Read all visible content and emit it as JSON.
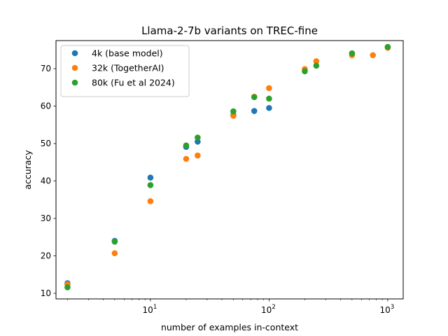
{
  "chart_data": {
    "type": "scatter",
    "title": "Llama-2-7b variants on TREC-fine",
    "xlabel": "number of examples in-context",
    "ylabel": "accuracy",
    "xscale": "log",
    "xlim": [
      1.6,
      1350
    ],
    "ylim": [
      8.5,
      77.5
    ],
    "x_ticks": [
      {
        "value": 10,
        "base": "10",
        "exp": "1"
      },
      {
        "value": 100,
        "base": "10",
        "exp": "2"
      },
      {
        "value": 1000,
        "base": "10",
        "exp": "3"
      }
    ],
    "y_ticks": [
      "10",
      "20",
      "30",
      "40",
      "50",
      "60",
      "70"
    ],
    "grid": false,
    "legend_position": "top-left",
    "series": [
      {
        "name": "4k (base model)",
        "color": "#1f77b4",
        "points": [
          {
            "x": 2,
            "y": 12.7
          },
          {
            "x": 5,
            "y": 24.0
          },
          {
            "x": 10,
            "y": 40.9
          },
          {
            "x": 20,
            "y": 49.1
          },
          {
            "x": 25,
            "y": 50.5
          },
          {
            "x": 50,
            "y": 57.6
          },
          {
            "x": 75,
            "y": 58.7
          },
          {
            "x": 100,
            "y": 59.5
          }
        ]
      },
      {
        "name": "32k (TogetherAI)",
        "color": "#ff7f0e",
        "points": [
          {
            "x": 2,
            "y": 12.4
          },
          {
            "x": 5,
            "y": 20.7
          },
          {
            "x": 10,
            "y": 34.6
          },
          {
            "x": 20,
            "y": 45.9
          },
          {
            "x": 25,
            "y": 46.8
          },
          {
            "x": 50,
            "y": 57.4
          },
          {
            "x": 75,
            "y": 62.5
          },
          {
            "x": 100,
            "y": 64.8
          },
          {
            "x": 200,
            "y": 69.9
          },
          {
            "x": 250,
            "y": 72.0
          },
          {
            "x": 500,
            "y": 73.6
          },
          {
            "x": 750,
            "y": 73.6
          },
          {
            "x": 1000,
            "y": 75.6
          }
        ]
      },
      {
        "name": "80k (Fu et al 2024)",
        "color": "#2ca02c",
        "points": [
          {
            "x": 2,
            "y": 11.6
          },
          {
            "x": 5,
            "y": 23.8
          },
          {
            "x": 10,
            "y": 38.9
          },
          {
            "x": 20,
            "y": 49.5
          },
          {
            "x": 25,
            "y": 51.6
          },
          {
            "x": 50,
            "y": 58.6
          },
          {
            "x": 75,
            "y": 62.4
          },
          {
            "x": 100,
            "y": 62.0
          },
          {
            "x": 200,
            "y": 69.3
          },
          {
            "x": 250,
            "y": 70.8
          },
          {
            "x": 500,
            "y": 74.1
          },
          {
            "x": 1000,
            "y": 75.8
          }
        ]
      }
    ]
  }
}
